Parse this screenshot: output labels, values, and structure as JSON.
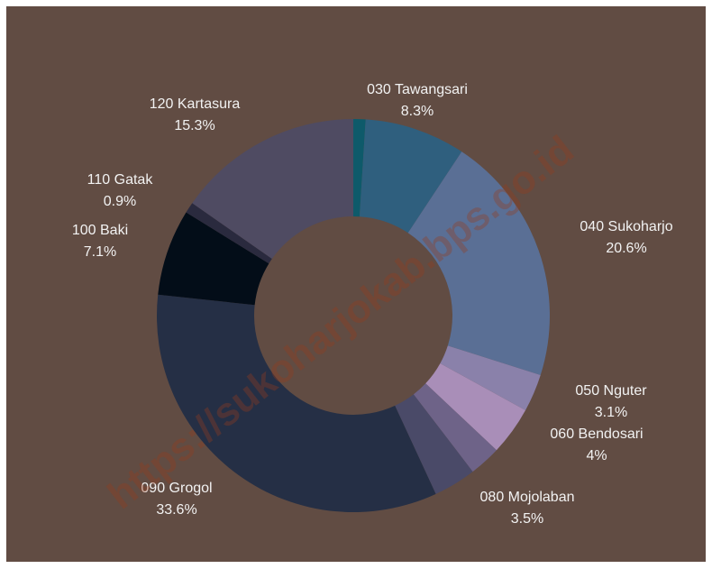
{
  "chart_data": {
    "type": "donut",
    "watermark": "https://sukoharjokab.bps.go.id",
    "categories": [
      null,
      "030 Tawangsari",
      "040 Sukoharjo",
      "050 Nguter",
      "060 Bendosari",
      null,
      "080 Mojolaban",
      "090 Grogol",
      "100 Baki",
      "110 Gatak",
      "120 Kartasura"
    ],
    "values": [
      1.0,
      8.3,
      20.6,
      3.1,
      4,
      2.6,
      3.5,
      33.6,
      7.1,
      0.9,
      15.3
    ],
    "value_labels": [
      null,
      "8.3%",
      "20.6%",
      "3.1%",
      "4%",
      null,
      "3.5%",
      "33.6%",
      "7.1%",
      "0.9%",
      "15.3%"
    ],
    "colors": [
      "#0e5a6a",
      "#2f5f7e",
      "#5a6f95",
      "#8a81aa",
      "#a98eb8",
      "#6e6388",
      "#4a4a68",
      "#252f45",
      "#030d18",
      "#2a2a3e",
      "#4f4b62"
    ]
  }
}
